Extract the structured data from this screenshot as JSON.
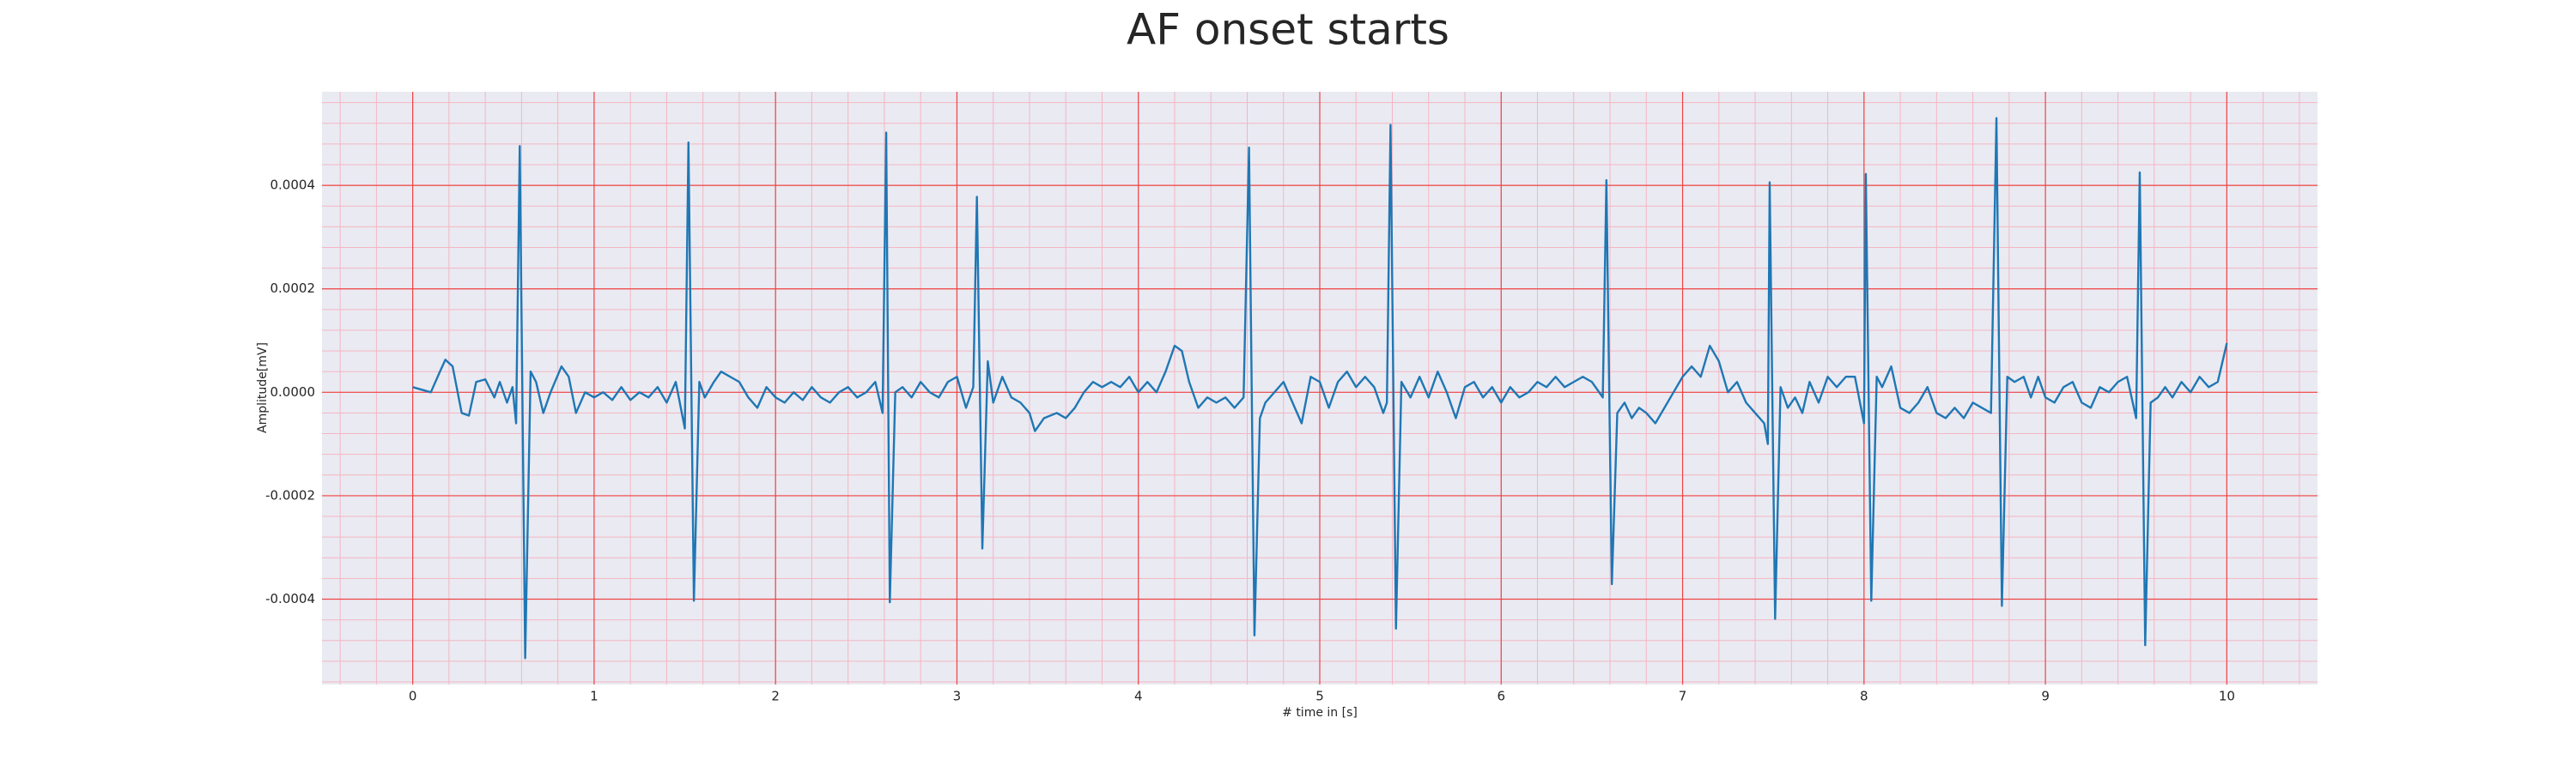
{
  "chart_data": {
    "type": "line",
    "title": "AF onset starts",
    "x_label": "# time in [s]",
    "y_label": "Amplitude[mV]",
    "color": "#1f77b4",
    "grid": true,
    "minor_grid": {
      "x": 0.2,
      "y": 4e-05
    },
    "xlim": [
      -0.5,
      10.5
    ],
    "ylim": [
      -0.000565,
      0.000581
    ],
    "xticks": [
      0,
      1,
      2,
      3,
      4,
      5,
      6,
      7,
      8,
      9,
      10
    ],
    "yticks": [
      -0.0004,
      -0.0002,
      {
        "value": 0,
        "label": "0.0000"
      },
      0.0002,
      0.0004
    ],
    "x": [
      0.0,
      0.05,
      0.1,
      0.15,
      0.18,
      0.22,
      0.27,
      0.31,
      0.35,
      0.4,
      0.45,
      0.48,
      0.52,
      0.55,
      0.57,
      0.59,
      0.62,
      0.65,
      0.68,
      0.72,
      0.76,
      0.82,
      0.86,
      0.9,
      0.95,
      1.0,
      1.05,
      1.1,
      1.15,
      1.2,
      1.25,
      1.3,
      1.35,
      1.4,
      1.45,
      1.5,
      1.52,
      1.55,
      1.58,
      1.61,
      1.66,
      1.7,
      1.75,
      1.8,
      1.85,
      1.9,
      1.95,
      2.0,
      2.05,
      2.1,
      2.15,
      2.2,
      2.25,
      2.3,
      2.35,
      2.4,
      2.45,
      2.5,
      2.55,
      2.59,
      2.61,
      2.63,
      2.66,
      2.7,
      2.75,
      2.8,
      2.85,
      2.9,
      2.95,
      3.0,
      3.05,
      3.09,
      3.11,
      3.14,
      3.17,
      3.2,
      3.25,
      3.3,
      3.35,
      3.4,
      3.43,
      3.48,
      3.55,
      3.6,
      3.65,
      3.7,
      3.75,
      3.8,
      3.85,
      3.9,
      3.95,
      4.0,
      4.05,
      4.1,
      4.15,
      4.2,
      4.24,
      4.28,
      4.33,
      4.38,
      4.43,
      4.48,
      4.53,
      4.58,
      4.61,
      4.64,
      4.67,
      4.7,
      4.75,
      4.8,
      4.85,
      4.9,
      4.95,
      5.0,
      5.05,
      5.1,
      5.15,
      5.2,
      5.25,
      5.3,
      5.35,
      5.37,
      5.39,
      5.42,
      5.45,
      5.5,
      5.55,
      5.6,
      5.65,
      5.7,
      5.75,
      5.8,
      5.85,
      5.9,
      5.95,
      6.0,
      6.05,
      6.1,
      6.15,
      6.2,
      6.25,
      6.3,
      6.35,
      6.4,
      6.45,
      6.5,
      6.56,
      6.58,
      6.61,
      6.64,
      6.68,
      6.72,
      6.76,
      6.8,
      6.85,
      6.9,
      6.95,
      7.0,
      7.05,
      7.1,
      7.15,
      7.2,
      7.25,
      7.3,
      7.35,
      7.4,
      7.45,
      7.47,
      7.48,
      7.51,
      7.54,
      7.58,
      7.62,
      7.66,
      7.7,
      7.75,
      7.8,
      7.85,
      7.9,
      7.95,
      8.0,
      8.01,
      8.04,
      8.07,
      8.1,
      8.15,
      8.2,
      8.25,
      8.3,
      8.35,
      8.4,
      8.45,
      8.5,
      8.55,
      8.6,
      8.65,
      8.7,
      8.73,
      8.76,
      8.79,
      8.83,
      8.88,
      8.92,
      8.96,
      9.0,
      9.05,
      9.1,
      9.15,
      9.2,
      9.25,
      9.3,
      9.35,
      9.4,
      9.45,
      9.5,
      9.52,
      9.55,
      9.58,
      9.62,
      9.66,
      9.7,
      9.75,
      9.8,
      9.85,
      9.9,
      9.95,
      10.0
    ],
    "values": [
      1e-05,
      5e-06,
      0,
      4e-05,
      6.3e-05,
      5e-05,
      -4e-05,
      -4.5e-05,
      2e-05,
      2.5e-05,
      -1e-05,
      2e-05,
      -2e-05,
      1e-05,
      -6e-05,
      0.000476,
      -0.000514,
      4e-05,
      2e-05,
      -4e-05,
      0,
      5e-05,
      3e-05,
      -4e-05,
      0,
      -1e-05,
      0,
      -1.5e-05,
      1e-05,
      -1.5e-05,
      0,
      -1e-05,
      1e-05,
      -2e-05,
      2e-05,
      -7e-05,
      0.000483,
      -0.000403,
      2e-05,
      -1e-05,
      2e-05,
      4e-05,
      3e-05,
      2e-05,
      -1e-05,
      -3e-05,
      1e-05,
      -1e-05,
      -2e-05,
      0,
      -1.5e-05,
      1e-05,
      -1e-05,
      -2e-05,
      0,
      1e-05,
      -1e-05,
      0,
      2e-05,
      -4e-05,
      0.000502,
      -0.000406,
      0,
      1e-05,
      -1e-05,
      2e-05,
      0,
      -1e-05,
      2e-05,
      3e-05,
      -3e-05,
      1e-05,
      0.000378,
      -0.000302,
      6e-05,
      -2e-05,
      3e-05,
      -1e-05,
      -2e-05,
      -4e-05,
      -7.5e-05,
      -5e-05,
      -4e-05,
      -5e-05,
      -3e-05,
      0,
      2e-05,
      1e-05,
      2e-05,
      1e-05,
      3e-05,
      0,
      2e-05,
      0,
      4e-05,
      9e-05,
      8e-05,
      2e-05,
      -3e-05,
      -1e-05,
      -2e-05,
      -1e-05,
      -3e-05,
      -1e-05,
      0.000473,
      -0.00047,
      -5e-05,
      -2e-05,
      0,
      2e-05,
      -2e-05,
      -6e-05,
      3e-05,
      2e-05,
      -3e-05,
      2e-05,
      4e-05,
      1e-05,
      3e-05,
      1e-05,
      -4e-05,
      -2e-05,
      0.000517,
      -0.000457,
      2e-05,
      -1e-05,
      3e-05,
      -1e-05,
      4e-05,
      0,
      -5e-05,
      1e-05,
      2e-05,
      -1e-05,
      1e-05,
      -2e-05,
      1e-05,
      -1e-05,
      0,
      2e-05,
      1e-05,
      3e-05,
      1e-05,
      2e-05,
      3e-05,
      2e-05,
      -1e-05,
      0.00041,
      -0.000371,
      -4e-05,
      -2e-05,
      -5e-05,
      -3e-05,
      -4e-05,
      -6e-05,
      -3e-05,
      0,
      3e-05,
      5e-05,
      3e-05,
      9e-05,
      6e-05,
      0,
      2e-05,
      -2e-05,
      -4e-05,
      -6e-05,
      -0.0001,
      0.000406,
      -0.000438,
      1e-05,
      -3e-05,
      -1e-05,
      -4e-05,
      2e-05,
      -2e-05,
      3e-05,
      1e-05,
      3e-05,
      3e-05,
      -6e-05,
      0.000422,
      -0.000403,
      3e-05,
      1e-05,
      5e-05,
      -3e-05,
      -4e-05,
      -2e-05,
      1e-05,
      -4e-05,
      -5e-05,
      -3e-05,
      -5e-05,
      -2e-05,
      -3e-05,
      -4e-05,
      0.00053,
      -0.000413,
      3e-05,
      2e-05,
      3e-05,
      -1e-05,
      3e-05,
      -1e-05,
      -2e-05,
      1e-05,
      2e-05,
      -2e-05,
      -3e-05,
      1e-05,
      0,
      2e-05,
      3e-05,
      -5e-05,
      0.000425,
      -0.000489,
      -2e-05,
      -1e-05,
      1e-05,
      -1e-05,
      2e-05,
      0,
      3e-05,
      1e-05,
      2e-05,
      9.5e-05
    ]
  }
}
